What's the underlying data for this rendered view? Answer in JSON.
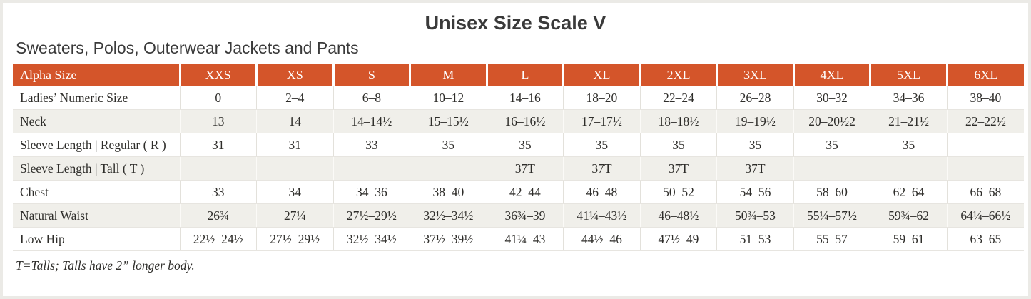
{
  "title": "Unisex Size Scale V",
  "subtitle": "Sweaters, Polos, Outerwear Jackets and Pants",
  "footnote": "T=Talls; Talls have 2” longer body.",
  "colors": {
    "header_bg": "#D4552A",
    "header_text": "#FFFFFF",
    "shaded_row_bg": "#F0EFEA",
    "body_text": "#2E2D2A",
    "frame_border": "#EBEAE6"
  },
  "table": {
    "header": [
      "Alpha Size",
      "XXS",
      "XS",
      "S",
      "M",
      "L",
      "XL",
      "2XL",
      "3XL",
      "4XL",
      "5XL",
      "6XL"
    ],
    "rows": [
      {
        "label": "Ladies’ Numeric Size",
        "shaded": false,
        "values": [
          "0",
          "2–4",
          "6–8",
          "10–12",
          "14–16",
          "18–20",
          "22–24",
          "26–28",
          "30–32",
          "34–36",
          "38–40"
        ]
      },
      {
        "label": "Neck",
        "shaded": true,
        "values": [
          "13",
          "14",
          "14–14½",
          "15–15½",
          "16–16½",
          "17–17½",
          "18–18½",
          "19–19½",
          "20–20½2",
          "21–21½",
          "22–22½"
        ]
      },
      {
        "label": "Sleeve Length | Regular ( R )",
        "shaded": false,
        "values": [
          "31",
          "31",
          "33",
          "35",
          "35",
          "35",
          "35",
          "35",
          "35",
          "35",
          ""
        ]
      },
      {
        "label": "Sleeve Length | Tall ( T )",
        "shaded": true,
        "values": [
          "",
          "",
          "",
          "",
          "37T",
          "37T",
          "37T",
          "37T",
          "",
          "",
          ""
        ]
      },
      {
        "label": "Chest",
        "shaded": false,
        "values": [
          "33",
          "34",
          "34–36",
          "38–40",
          "42–44",
          "46–48",
          "50–52",
          "54–56",
          "58–60",
          "62–64",
          "66–68"
        ]
      },
      {
        "label": "Natural Waist",
        "shaded": true,
        "values": [
          "26¾",
          "27¼",
          "27½–29½",
          "32½–34½",
          "36¾–39",
          "41¼–43½",
          "46–48½",
          "50¾–53",
          "55¼–57½",
          "59¾–62",
          "64¼–66½"
        ]
      },
      {
        "label": "Low Hip",
        "shaded": false,
        "values": [
          "22½–24½",
          "27½–29½",
          "32½–34½",
          "37½–39½",
          "41¼–43",
          "44½–46",
          "47½–49",
          "51–53",
          "55–57",
          "59–61",
          "63–65"
        ]
      }
    ]
  }
}
